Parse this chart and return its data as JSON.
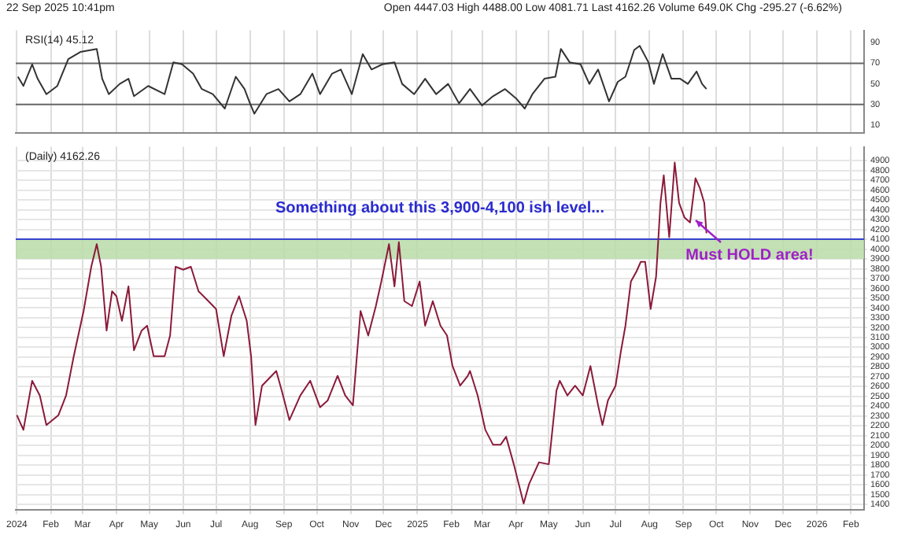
{
  "chart_data": [
    {
      "type": "line",
      "title": "RSI(14) 45.12",
      "annotations": [
        "22 Sep 2025 10:41pm",
        "Open 4447.03 High 4488.00 Low 4081.71 Last 4162.26 Volume 649.0K Chg -295.27 (-6.62%)"
      ],
      "x": [
        "2024-01-02",
        "2024-01-07",
        "2024-01-15",
        "2024-01-20",
        "2024-01-28",
        "2024-02-07",
        "2024-02-17",
        "2024-02-28",
        "2024-03-14",
        "2024-03-19",
        "2024-03-25",
        "2024-04-04",
        "2024-04-12",
        "2024-04-17",
        "2024-04-30",
        "2024-05-15",
        "2024-05-23",
        "2024-05-31",
        "2024-06-10",
        "2024-06-18",
        "2024-06-28",
        "2024-07-09",
        "2024-07-19",
        "2024-07-27",
        "2024-08-01",
        "2024-08-05",
        "2024-08-16",
        "2024-08-27",
        "2024-09-06",
        "2024-09-16",
        "2024-09-27",
        "2024-10-04",
        "2024-10-15",
        "2024-10-23",
        "2024-11-02",
        "2024-11-12",
        "2024-11-20",
        "2024-11-30",
        "2024-12-11",
        "2024-12-18",
        "2024-12-29",
        "2025-01-08",
        "2025-01-18",
        "2025-01-29",
        "2025-02-08",
        "2025-02-18",
        "2025-03-01",
        "2025-03-11",
        "2025-03-22",
        "2025-04-01",
        "2025-04-09",
        "2025-04-16",
        "2025-04-27",
        "2025-05-07",
        "2025-05-12",
        "2025-05-20",
        "2025-05-30",
        "2025-06-07",
        "2025-06-15",
        "2025-06-25",
        "2025-07-03",
        "2025-07-10",
        "2025-07-18",
        "2025-07-23",
        "2025-07-31",
        "2025-08-05",
        "2025-08-13",
        "2025-08-21",
        "2025-08-29",
        "2025-09-05",
        "2025-09-13",
        "2025-09-18",
        "2025-09-22"
      ],
      "series": [
        {
          "color": "#333333",
          "values": [
            57,
            48,
            69,
            55,
            40,
            48,
            74,
            81,
            84,
            55,
            40,
            50,
            55,
            38,
            48,
            40,
            71,
            69,
            60,
            45,
            40,
            26,
            57,
            45,
            31,
            21,
            40,
            45,
            33,
            40,
            60,
            40,
            60,
            64,
            40,
            79,
            64,
            69,
            71,
            50,
            40,
            55,
            40,
            50,
            31,
            45,
            29,
            38,
            45,
            36,
            26,
            40,
            55,
            57,
            84,
            71,
            69,
            50,
            64,
            33,
            52,
            57,
            83,
            87,
            71,
            50,
            79,
            55,
            55,
            50,
            62,
            50,
            45
          ]
        }
      ],
      "xlim": [
        "2023-12-31",
        "2026-02-13"
      ],
      "xticks": [
        {
          "value": "2024-01",
          "label": null
        },
        {
          "value": "2024-02",
          "label": null
        },
        {
          "value": "2024-03",
          "label": null
        },
        {
          "value": "2024-04",
          "label": null
        },
        {
          "value": "2024-05",
          "label": null
        },
        {
          "value": "2024-06",
          "label": null
        },
        {
          "value": "2024-07",
          "label": null
        },
        {
          "value": "2024-08",
          "label": null
        },
        {
          "value": "2024-09",
          "label": null
        },
        {
          "value": "2024-10",
          "label": null
        },
        {
          "value": "2024-11",
          "label": null
        },
        {
          "value": "2024-12",
          "label": null
        },
        {
          "value": "2025-01",
          "label": null
        },
        {
          "value": "2025-02",
          "label": null
        },
        {
          "value": "2025-03",
          "label": null
        },
        {
          "value": "2025-04",
          "label": null
        },
        {
          "value": "2025-05",
          "label": null
        },
        {
          "value": "2025-06",
          "label": null
        },
        {
          "value": "2025-07",
          "label": null
        },
        {
          "value": "2025-08",
          "label": null
        },
        {
          "value": "2025-09",
          "label": null
        },
        {
          "value": "2025-10",
          "label": null
        },
        {
          "value": "2025-11",
          "label": null
        },
        {
          "value": "2025-12",
          "label": null
        },
        {
          "value": "2026-01",
          "label": null
        },
        {
          "value": "2026-02",
          "label": null
        }
      ],
      "ylim": [
        2,
        102
      ],
      "yticks": [
        10,
        30,
        50,
        70,
        90
      ],
      "ref_lines": [
        {
          "axis": "y",
          "value": 70,
          "color": "#666666"
        },
        {
          "axis": "y",
          "value": 30,
          "color": "#666666"
        }
      ],
      "grid": "x",
      "legend": false,
      "marker": "none",
      "line_style": "solid",
      "tick_labels": "y"
    },
    {
      "type": "line",
      "title": "(Daily) 4162.26",
      "x": [
        "2024-01-01",
        "2024-01-07",
        "2024-01-15",
        "2024-01-22",
        "2024-01-28",
        "2024-02-08",
        "2024-02-15",
        "2024-02-22",
        "2024-03-02",
        "2024-03-09",
        "2024-03-14",
        "2024-03-18",
        "2024-03-23",
        "2024-03-28",
        "2024-04-01",
        "2024-04-06",
        "2024-04-12",
        "2024-04-17",
        "2024-04-24",
        "2024-04-29",
        "2024-05-05",
        "2024-05-15",
        "2024-05-20",
        "2024-05-25",
        "2024-06-01",
        "2024-06-08",
        "2024-06-15",
        "2024-06-24",
        "2024-07-01",
        "2024-07-08",
        "2024-07-15",
        "2024-07-22",
        "2024-07-29",
        "2024-08-02",
        "2024-08-06",
        "2024-08-12",
        "2024-08-25",
        "2024-08-30",
        "2024-09-06",
        "2024-09-16",
        "2024-09-25",
        "2024-10-04",
        "2024-10-11",
        "2024-10-20",
        "2024-10-27",
        "2024-11-03",
        "2024-11-10",
        "2024-11-17",
        "2024-11-24",
        "2024-11-29",
        "2024-12-06",
        "2024-12-11",
        "2024-12-15",
        "2024-12-20",
        "2024-12-27",
        "2025-01-03",
        "2025-01-08",
        "2025-01-15",
        "2025-01-22",
        "2025-01-28",
        "2025-02-02",
        "2025-02-09",
        "2025-02-16",
        "2025-02-18",
        "2025-02-25",
        "2025-03-04",
        "2025-03-11",
        "2025-03-18",
        "2025-03-23",
        "2025-03-30",
        "2025-04-08",
        "2025-04-13",
        "2025-04-22",
        "2025-05-01",
        "2025-05-08",
        "2025-05-11",
        "2025-05-18",
        "2025-05-25",
        "2025-06-01",
        "2025-06-08",
        "2025-06-15",
        "2025-06-19",
        "2025-06-24",
        "2025-07-01",
        "2025-07-06",
        "2025-07-10",
        "2025-07-15",
        "2025-07-20",
        "2025-07-24",
        "2025-07-28",
        "2025-08-02",
        "2025-08-07",
        "2025-08-11",
        "2025-08-14",
        "2025-08-19",
        "2025-08-24",
        "2025-08-28",
        "2025-09-02",
        "2025-09-07",
        "2025-09-12",
        "2025-09-16",
        "2025-09-20",
        "2025-09-22"
      ],
      "series": [
        {
          "color": "#8b1a3a",
          "values": [
            2310,
            2160,
            2660,
            2510,
            2210,
            2310,
            2510,
            2910,
            3370,
            3820,
            4050,
            3820,
            3170,
            3570,
            3520,
            3270,
            3620,
            2970,
            3170,
            3220,
            2910,
            2910,
            3120,
            3820,
            3790,
            3820,
            3570,
            3470,
            3390,
            2910,
            3320,
            3520,
            3270,
            2910,
            2210,
            2610,
            2760,
            2560,
            2260,
            2510,
            2660,
            2390,
            2460,
            2710,
            2510,
            2410,
            3370,
            3120,
            3420,
            3670,
            4050,
            3620,
            4070,
            3470,
            3420,
            3670,
            3220,
            3470,
            3220,
            3120,
            2810,
            2610,
            2710,
            2760,
            2510,
            2160,
            2010,
            2010,
            2090,
            1810,
            1410,
            1610,
            1830,
            1810,
            2560,
            2660,
            2510,
            2610,
            2510,
            2810,
            2410,
            2210,
            2460,
            2610,
            2970,
            3220,
            3670,
            3770,
            3870,
            3870,
            3390,
            3720,
            4470,
            4750,
            4120,
            4880,
            4470,
            4320,
            4270,
            4720,
            4620,
            4470,
            4160
          ]
        }
      ],
      "xlim": [
        "2023-12-31",
        "2026-02-13"
      ],
      "xticks": [
        {
          "value": "2024-01",
          "label": "2024"
        },
        {
          "value": "2024-02",
          "label": "Feb"
        },
        {
          "value": "2024-03",
          "label": "Mar"
        },
        {
          "value": "2024-04",
          "label": "Apr"
        },
        {
          "value": "2024-05",
          "label": "May"
        },
        {
          "value": "2024-06",
          "label": "Jun"
        },
        {
          "value": "2024-07",
          "label": "Jul"
        },
        {
          "value": "2024-08",
          "label": "Aug"
        },
        {
          "value": "2024-09",
          "label": "Sep"
        },
        {
          "value": "2024-10",
          "label": "Oct"
        },
        {
          "value": "2024-11",
          "label": "Nov"
        },
        {
          "value": "2024-12",
          "label": "Dec"
        },
        {
          "value": "2025-01",
          "label": "2025"
        },
        {
          "value": "2025-02",
          "label": "Feb"
        },
        {
          "value": "2025-03",
          "label": "Mar"
        },
        {
          "value": "2025-04",
          "label": "Apr"
        },
        {
          "value": "2025-05",
          "label": "May"
        },
        {
          "value": "2025-06",
          "label": "Jun"
        },
        {
          "value": "2025-07",
          "label": "Jul"
        },
        {
          "value": "2025-08",
          "label": "Aug"
        },
        {
          "value": "2025-09",
          "label": "Sep"
        },
        {
          "value": "2025-10",
          "label": "Oct"
        },
        {
          "value": "2025-11",
          "label": "Nov"
        },
        {
          "value": "2025-12",
          "label": "Dec"
        },
        {
          "value": "2026-01",
          "label": "2026"
        },
        {
          "value": "2026-02",
          "label": "Feb"
        }
      ],
      "ylim": [
        1350,
        5040
      ],
      "yticks": [
        1400,
        1500,
        1600,
        1700,
        1800,
        1900,
        2000,
        2100,
        2200,
        2300,
        2400,
        2500,
        2600,
        2700,
        2800,
        2900,
        3000,
        3100,
        3200,
        3300,
        3400,
        3500,
        3600,
        3700,
        3800,
        3900,
        4000,
        4100,
        4200,
        4300,
        4400,
        4500,
        4600,
        4700,
        4800,
        4900
      ],
      "bands": [
        {
          "axis": "y",
          "from": 3900,
          "to": 4100,
          "color": "#b9dca8"
        }
      ],
      "ref_lines": [
        {
          "axis": "y",
          "value": 4100,
          "color": "#3344cc"
        }
      ],
      "annotations": [
        "Something about this 3,900-4,100 ish level...",
        "Must HOLD area!"
      ],
      "grid": true,
      "legend": false,
      "marker": "none",
      "line_style": "solid"
    }
  ]
}
